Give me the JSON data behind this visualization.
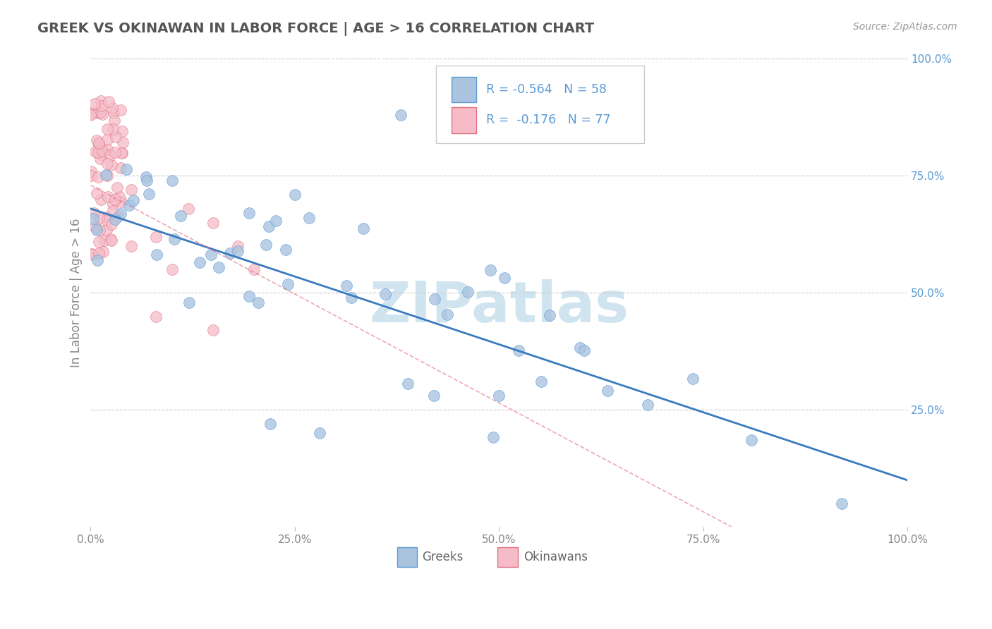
{
  "title": "GREEK VS OKINAWAN IN LABOR FORCE | AGE > 16 CORRELATION CHART",
  "source_text": "Source: ZipAtlas.com",
  "ylabel": "In Labor Force | Age > 16",
  "greek_R": -0.564,
  "greek_N": 58,
  "okinawan_R": -0.176,
  "okinawan_N": 77,
  "greek_color": "#aac4e0",
  "greek_edge_color": "#5b9bd5",
  "greek_line_color": "#3a7abf",
  "okinawan_color": "#f5bcc8",
  "okinawan_edge_color": "#e07080",
  "okinawan_line_color": "#e07080",
  "watermark_color": "#d0e4f0",
  "background_color": "#ffffff",
  "grid_color": "#cccccc",
  "right_tick_color": "#5b9bd5",
  "xlim": [
    0.0,
    1.0
  ],
  "ylim": [
    0.0,
    1.0
  ],
  "xticks": [
    0.0,
    0.25,
    0.5,
    0.75,
    1.0
  ],
  "xtick_labels": [
    "0.0%",
    "25.0%",
    "50.0%",
    "75.0%",
    "100.0%"
  ],
  "yticks_right": [
    0.25,
    0.5,
    0.75,
    1.0
  ],
  "ytick_labels_right": [
    "25.0%",
    "50.0%",
    "75.0%",
    "100.0%"
  ],
  "legend_R_color": "#5b9bd5",
  "legend_N_color": "#5b9bd5"
}
